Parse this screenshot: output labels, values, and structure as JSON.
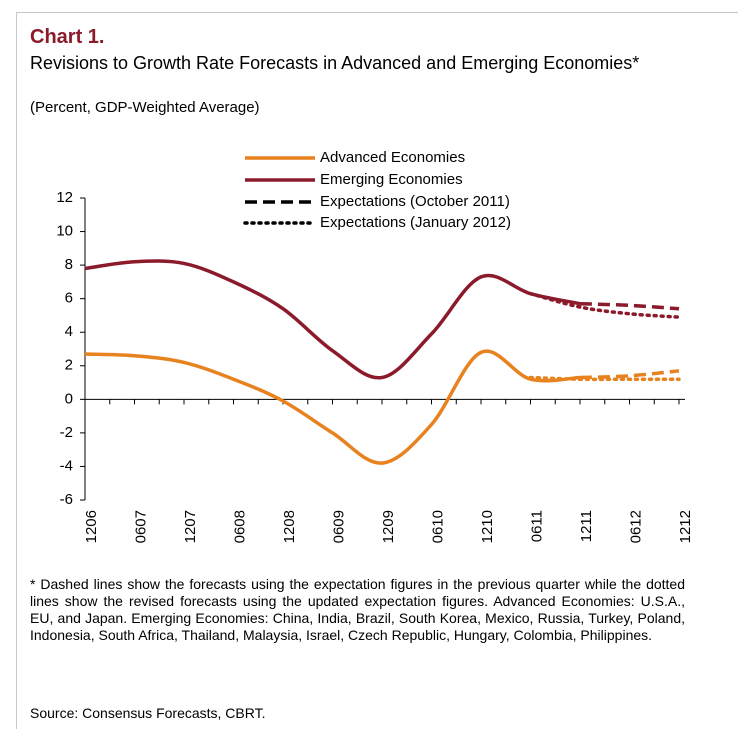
{
  "chart_data": {
    "type": "line",
    "title": "Chart 1.",
    "subtitle": "Revisions to Growth Rate Forecasts in Advanced and Emerging Economies*",
    "units": "(Percent, GDP-Weighted Average)",
    "categories": [
      "1206",
      "0607",
      "1207",
      "0608",
      "1208",
      "0609",
      "1209",
      "0610",
      "1210",
      "0611",
      "1211",
      "0612",
      "1212"
    ],
    "series": [
      {
        "name": "Advanced Economies",
        "color": "#e8821e",
        "values": [
          2.7,
          2.6,
          2.2,
          1.2,
          -0.1,
          -2.0,
          -3.8,
          -1.5,
          2.8,
          1.2,
          1.3,
          null,
          null
        ],
        "forecasts": [
          [
            null,
            null,
            null,
            null,
            null,
            null,
            null,
            null,
            null,
            null,
            1.3,
            1.4,
            1.7
          ],
          [
            null,
            null,
            null,
            null,
            null,
            null,
            null,
            null,
            null,
            1.3,
            1.2,
            1.2,
            1.2
          ]
        ]
      },
      {
        "name": "Emerging Economies",
        "color": "#8b1a2b",
        "values": [
          7.8,
          8.2,
          8.1,
          7.0,
          5.4,
          2.9,
          1.3,
          3.9,
          7.3,
          6.3,
          5.7,
          null,
          null
        ],
        "forecasts": [
          [
            null,
            null,
            null,
            null,
            null,
            null,
            null,
            null,
            null,
            null,
            5.7,
            5.6,
            5.4
          ],
          [
            null,
            null,
            null,
            null,
            null,
            null,
            null,
            null,
            null,
            6.3,
            5.5,
            5.1,
            4.9
          ]
        ]
      }
    ],
    "expectations": [
      {
        "name": "Expectations (October 2011)",
        "dash": "dashed",
        "color": "#000000"
      },
      {
        "name": "Expectations (January 2012)",
        "dash": "dotted",
        "color": "#000000"
      }
    ],
    "ylim": [
      -6,
      12
    ],
    "yticks": [
      -6,
      -4,
      -2,
      0,
      2,
      4,
      6,
      8,
      10,
      12
    ],
    "grid": false,
    "note": "* Dashed lines show the forecasts using the expectation figures in the previous quarter while the dotted lines show the revised forecasts using the updated expectation figures. Advanced Economies: U.S.A., EU, and Japan. Emerging Economies: China, India, Brazil, South Korea, Mexico, Russia, Turkey, Poland, Indonesia, South Africa, Thailand, Malaysia, Israel, Czech Republic, Hungary, Colombia, Philippines.",
    "source": "Source: Consensus Forecasts, CBRT."
  }
}
